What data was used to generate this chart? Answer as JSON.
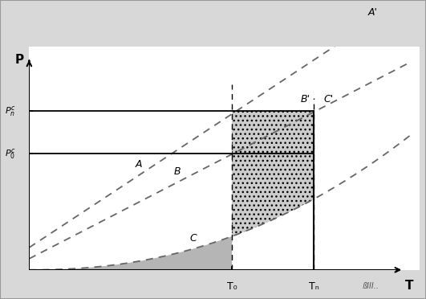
{
  "figsize": [
    5.31,
    3.72
  ],
  "dpi": 100,
  "bg_color": "#d8d8d8",
  "plot_bg_color": "#ffffff",
  "xlim": [
    0,
    10
  ],
  "ylim": [
    0,
    10
  ],
  "T0": 5.2,
  "Tn": 7.3,
  "Pnc": 7.1,
  "P0c": 5.2,
  "curve_color": "#666666",
  "curve_linewidth": 1.3,
  "label_A": "A",
  "label_B": "B",
  "label_C": "C",
  "label_Ap": "A'",
  "label_Bp": "B'",
  "label_Cp": "C'",
  "label_P": "P",
  "label_T": "T",
  "label_T0": "T₀",
  "label_Tn": "Tₙ",
  "gray_solid": "#b5b5b5",
  "gray_dot_face": "#cccccc",
  "gray_dot_edge": "#aaaaaa"
}
